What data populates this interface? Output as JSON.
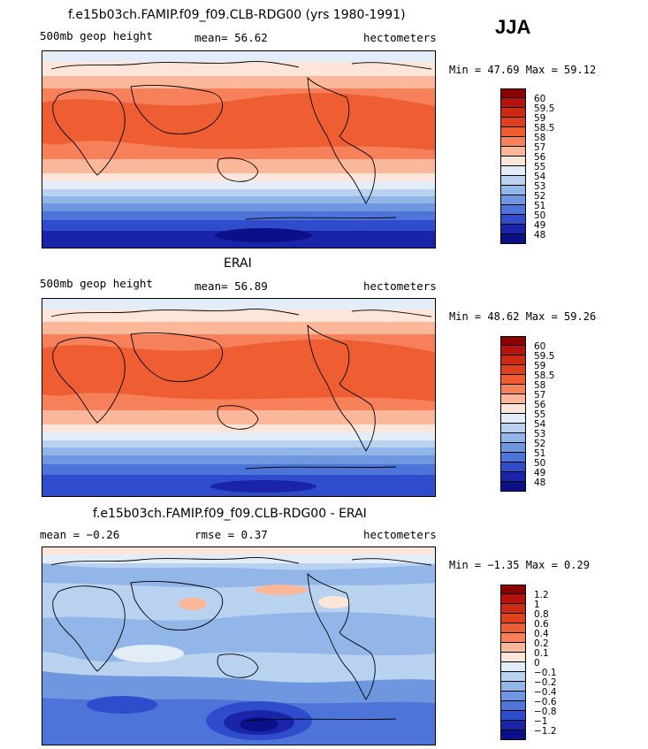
{
  "season": "JJA",
  "panels": [
    {
      "title": "f.e15b03ch.FAMIP.f09_f09.CLB-RDG00 (yrs 1980-1991)",
      "left_label": "500mb geop height",
      "center_label": "mean=  56.62",
      "right_label": "hectometers",
      "minmax": "Min =  47.69 Max =  59.12",
      "colorbar_labels": [
        "60",
        "59.5",
        "59",
        "58.5",
        "58",
        "57",
        "56",
        "55",
        "54",
        "53",
        "52",
        "51",
        "50",
        "49",
        "48"
      ],
      "colorbar_colors": [
        "#8b0000",
        "#b5140c",
        "#cc2a12",
        "#e0401d",
        "#ee5e32",
        "#f5805a",
        "#fbb799",
        "#fde6d9",
        "#e3edf8",
        "#b9d2f0",
        "#93b6e8",
        "#6e97df",
        "#4d74d8",
        "#2e4ccb",
        "#1a24a8",
        "#0b0f88"
      ]
    },
    {
      "title": "ERAI",
      "left_label": "500mb geop height",
      "center_label": "mean=  56.89",
      "right_label": "hectometers",
      "minmax": "Min =  48.62 Max =  59.26",
      "colorbar_labels": [
        "60",
        "59.5",
        "59",
        "58.5",
        "58",
        "57",
        "56",
        "55",
        "54",
        "53",
        "52",
        "51",
        "50",
        "49",
        "48"
      ],
      "colorbar_colors": [
        "#8b0000",
        "#b5140c",
        "#cc2a12",
        "#e0401d",
        "#ee5e32",
        "#f5805a",
        "#fbb799",
        "#fde6d9",
        "#e3edf8",
        "#b9d2f0",
        "#93b6e8",
        "#6e97df",
        "#4d74d8",
        "#2e4ccb",
        "#1a24a8",
        "#0b0f88"
      ]
    },
    {
      "title": "f.e15b03ch.FAMIP.f09_f09.CLB-RDG00 - ERAI",
      "left_label": "mean =  −0.26",
      "center_label": "rmse =   0.37",
      "right_label": "hectometers",
      "minmax": "Min =  −1.35 Max =   0.29",
      "colorbar_labels": [
        "1.2",
        "1",
        "0.8",
        "0.6",
        "0.4",
        "0.2",
        "0.1",
        "0",
        "−0.1",
        "−0.2",
        "−0.4",
        "−0.6",
        "−0.8",
        "−1",
        "−1.2"
      ],
      "colorbar_colors": [
        "#8b0000",
        "#b5140c",
        "#cc2a12",
        "#e0401d",
        "#ee5e32",
        "#f5805a",
        "#fbb799",
        "#fde6d9",
        "#e3edf8",
        "#b9d2f0",
        "#93b6e8",
        "#6e97df",
        "#4d74d8",
        "#2e4ccb",
        "#1a24a8",
        "#0b0f88"
      ]
    }
  ]
}
